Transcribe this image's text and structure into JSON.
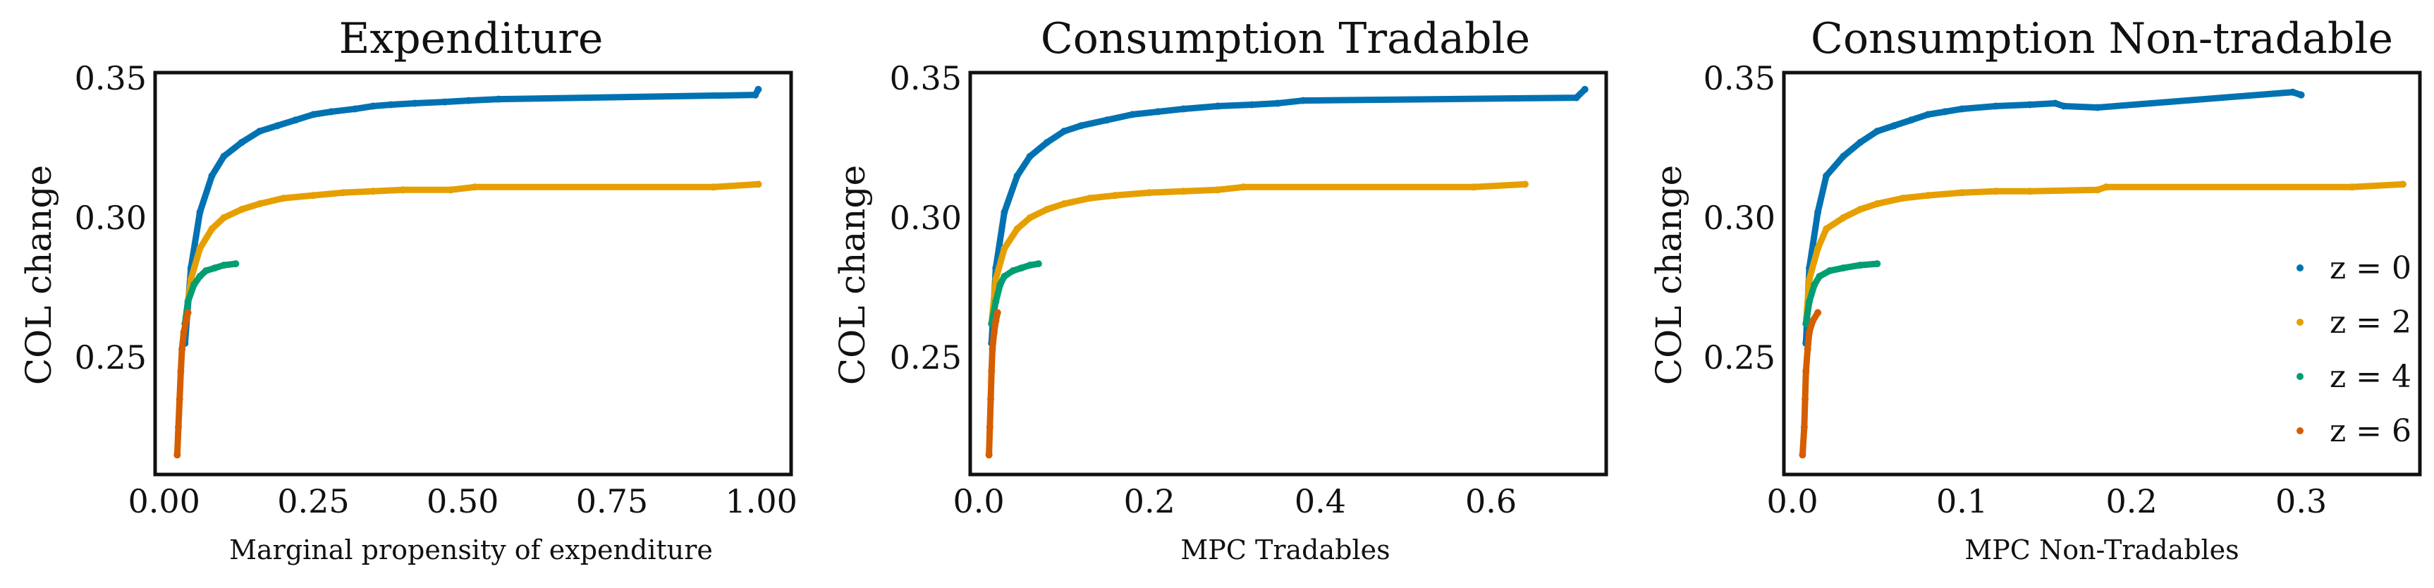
{
  "colors": {
    "z0": "#0072B2",
    "z2": "#E69F00",
    "z4": "#009E73",
    "z6": "#D55E00"
  },
  "chart_data": [
    {
      "type": "scatter",
      "title": "Expenditure",
      "xlabel": "Marginal propensity of expenditure",
      "ylabel": "COL change",
      "xlim": [
        -0.015,
        1.05
      ],
      "ylim": [
        0.208,
        0.352
      ],
      "xticks": [
        0.0,
        0.25,
        0.5,
        0.75,
        1.0
      ],
      "xtick_labels": [
        "0.00",
        "0.25",
        "0.50",
        "0.75",
        "1.00"
      ],
      "yticks": [
        0.25,
        0.3,
        0.35
      ],
      "ytick_labels": [
        "0.25",
        "0.30",
        "0.35"
      ],
      "grid": false,
      "series": [
        {
          "name": "z = 0",
          "color": "#0072B2",
          "points": [
            [
              0.035,
              0.255
            ],
            [
              0.045,
              0.282
            ],
            [
              0.06,
              0.302
            ],
            [
              0.08,
              0.315
            ],
            [
              0.1,
              0.322
            ],
            [
              0.13,
              0.327
            ],
            [
              0.16,
              0.331
            ],
            [
              0.19,
              0.333
            ],
            [
              0.22,
              0.335
            ],
            [
              0.25,
              0.337
            ],
            [
              0.28,
              0.338
            ],
            [
              0.32,
              0.339
            ],
            [
              0.35,
              0.34
            ],
            [
              0.38,
              0.3405
            ],
            [
              0.42,
              0.341
            ],
            [
              0.47,
              0.3415
            ],
            [
              0.51,
              0.342
            ],
            [
              0.56,
              0.3425
            ],
            [
              0.99,
              0.344
            ],
            [
              0.995,
              0.346
            ]
          ]
        },
        {
          "name": "z = 2",
          "color": "#E69F00",
          "points": [
            [
              0.035,
              0.262
            ],
            [
              0.045,
              0.278
            ],
            [
              0.06,
              0.289
            ],
            [
              0.08,
              0.296
            ],
            [
              0.1,
              0.3
            ],
            [
              0.13,
              0.303
            ],
            [
              0.16,
              0.305
            ],
            [
              0.2,
              0.307
            ],
            [
              0.25,
              0.308
            ],
            [
              0.3,
              0.309
            ],
            [
              0.35,
              0.3095
            ],
            [
              0.4,
              0.31
            ],
            [
              0.48,
              0.31
            ],
            [
              0.52,
              0.311
            ],
            [
              0.92,
              0.311
            ],
            [
              0.995,
              0.312
            ]
          ]
        },
        {
          "name": "z = 4",
          "color": "#009E73",
          "points": [
            [
              0.035,
              0.262
            ],
            [
              0.04,
              0.27
            ],
            [
              0.05,
              0.276
            ],
            [
              0.06,
              0.279
            ],
            [
              0.07,
              0.281
            ],
            [
              0.085,
              0.282
            ],
            [
              0.1,
              0.283
            ],
            [
              0.12,
              0.2835
            ]
          ]
        },
        {
          "name": "z = 6",
          "color": "#D55E00",
          "points": [
            [
              0.022,
              0.215
            ],
            [
              0.024,
              0.225
            ],
            [
              0.026,
              0.235
            ],
            [
              0.028,
              0.245
            ],
            [
              0.03,
              0.253
            ],
            [
              0.033,
              0.259
            ],
            [
              0.037,
              0.263
            ],
            [
              0.04,
              0.266
            ]
          ]
        }
      ]
    },
    {
      "type": "scatter",
      "title": "Consumption Tradable",
      "xlabel": "MPC Tradables",
      "ylabel": "COL change",
      "xlim": [
        -0.01,
        0.735
      ],
      "ylim": [
        0.208,
        0.352
      ],
      "xticks": [
        0.0,
        0.2,
        0.4,
        0.6
      ],
      "xtick_labels": [
        "0.0",
        "0.2",
        "0.4",
        "0.6"
      ],
      "yticks": [
        0.25,
        0.3,
        0.35
      ],
      "ytick_labels": [
        "0.25",
        "0.30",
        "0.35"
      ],
      "grid": false,
      "series": [
        {
          "name": "z = 0",
          "color": "#0072B2",
          "points": [
            [
              0.015,
              0.255
            ],
            [
              0.02,
              0.282
            ],
            [
              0.03,
              0.302
            ],
            [
              0.045,
              0.315
            ],
            [
              0.06,
              0.322
            ],
            [
              0.08,
              0.327
            ],
            [
              0.1,
              0.331
            ],
            [
              0.12,
              0.333
            ],
            [
              0.15,
              0.335
            ],
            [
              0.18,
              0.337
            ],
            [
              0.21,
              0.338
            ],
            [
              0.24,
              0.339
            ],
            [
              0.28,
              0.34
            ],
            [
              0.32,
              0.3405
            ],
            [
              0.35,
              0.341
            ],
            [
              0.38,
              0.342
            ],
            [
              0.7,
              0.343
            ],
            [
              0.71,
              0.346
            ]
          ]
        },
        {
          "name": "z = 2",
          "color": "#E69F00",
          "points": [
            [
              0.015,
              0.262
            ],
            [
              0.02,
              0.278
            ],
            [
              0.03,
              0.289
            ],
            [
              0.045,
              0.296
            ],
            [
              0.06,
              0.3
            ],
            [
              0.08,
              0.303
            ],
            [
              0.1,
              0.305
            ],
            [
              0.13,
              0.307
            ],
            [
              0.16,
              0.308
            ],
            [
              0.2,
              0.309
            ],
            [
              0.24,
              0.3095
            ],
            [
              0.28,
              0.31
            ],
            [
              0.31,
              0.311
            ],
            [
              0.58,
              0.311
            ],
            [
              0.64,
              0.312
            ]
          ]
        },
        {
          "name": "z = 4",
          "color": "#009E73",
          "points": [
            [
              0.015,
              0.262
            ],
            [
              0.02,
              0.27
            ],
            [
              0.025,
              0.276
            ],
            [
              0.03,
              0.279
            ],
            [
              0.04,
              0.281
            ],
            [
              0.05,
              0.282
            ],
            [
              0.06,
              0.283
            ],
            [
              0.07,
              0.2835
            ]
          ]
        },
        {
          "name": "z = 6",
          "color": "#D55E00",
          "points": [
            [
              0.012,
              0.215
            ],
            [
              0.013,
              0.225
            ],
            [
              0.014,
              0.235
            ],
            [
              0.015,
              0.245
            ],
            [
              0.016,
              0.253
            ],
            [
              0.018,
              0.259
            ],
            [
              0.02,
              0.263
            ],
            [
              0.022,
              0.266
            ]
          ]
        }
      ]
    },
    {
      "type": "scatter",
      "title": "Consumption Non-tradable",
      "xlabel": "MPC Non-Tradables",
      "ylabel": "COL change",
      "xlim": [
        -0.005,
        0.37
      ],
      "ylim": [
        0.208,
        0.352
      ],
      "xticks": [
        0.0,
        0.1,
        0.2,
        0.3
      ],
      "xtick_labels": [
        "0.0",
        "0.1",
        "0.2",
        "0.3"
      ],
      "yticks": [
        0.25,
        0.3,
        0.35
      ],
      "ytick_labels": [
        "0.25",
        "0.30",
        "0.35"
      ],
      "grid": false,
      "legend": "right",
      "series": [
        {
          "name": "z = 0",
          "color": "#0072B2",
          "points": [
            [
              0.008,
              0.255
            ],
            [
              0.01,
              0.282
            ],
            [
              0.015,
              0.302
            ],
            [
              0.02,
              0.315
            ],
            [
              0.03,
              0.322
            ],
            [
              0.04,
              0.327
            ],
            [
              0.05,
              0.331
            ],
            [
              0.06,
              0.333
            ],
            [
              0.07,
              0.335
            ],
            [
              0.08,
              0.337
            ],
            [
              0.09,
              0.338
            ],
            [
              0.1,
              0.339
            ],
            [
              0.12,
              0.34
            ],
            [
              0.14,
              0.3405
            ],
            [
              0.155,
              0.341
            ],
            [
              0.16,
              0.34
            ],
            [
              0.18,
              0.3395
            ],
            [
              0.295,
              0.345
            ],
            [
              0.3,
              0.344
            ]
          ]
        },
        {
          "name": "z = 2",
          "color": "#E69F00",
          "points": [
            [
              0.008,
              0.262
            ],
            [
              0.01,
              0.278
            ],
            [
              0.015,
              0.289
            ],
            [
              0.02,
              0.296
            ],
            [
              0.03,
              0.3
            ],
            [
              0.04,
              0.303
            ],
            [
              0.05,
              0.305
            ],
            [
              0.065,
              0.307
            ],
            [
              0.08,
              0.308
            ],
            [
              0.1,
              0.309
            ],
            [
              0.12,
              0.3095
            ],
            [
              0.14,
              0.3095
            ],
            [
              0.18,
              0.31
            ],
            [
              0.185,
              0.311
            ],
            [
              0.33,
              0.311
            ],
            [
              0.36,
              0.312
            ]
          ]
        },
        {
          "name": "z = 4",
          "color": "#009E73",
          "points": [
            [
              0.008,
              0.262
            ],
            [
              0.01,
              0.27
            ],
            [
              0.013,
              0.276
            ],
            [
              0.016,
              0.279
            ],
            [
              0.022,
              0.281
            ],
            [
              0.03,
              0.282
            ],
            [
              0.04,
              0.283
            ],
            [
              0.05,
              0.2835
            ]
          ]
        },
        {
          "name": "z = 6",
          "color": "#D55E00",
          "points": [
            [
              0.006,
              0.215
            ],
            [
              0.007,
              0.225
            ],
            [
              0.0075,
              0.235
            ],
            [
              0.008,
              0.245
            ],
            [
              0.009,
              0.253
            ],
            [
              0.01,
              0.259
            ],
            [
              0.012,
              0.263
            ],
            [
              0.015,
              0.266
            ]
          ]
        }
      ]
    }
  ]
}
